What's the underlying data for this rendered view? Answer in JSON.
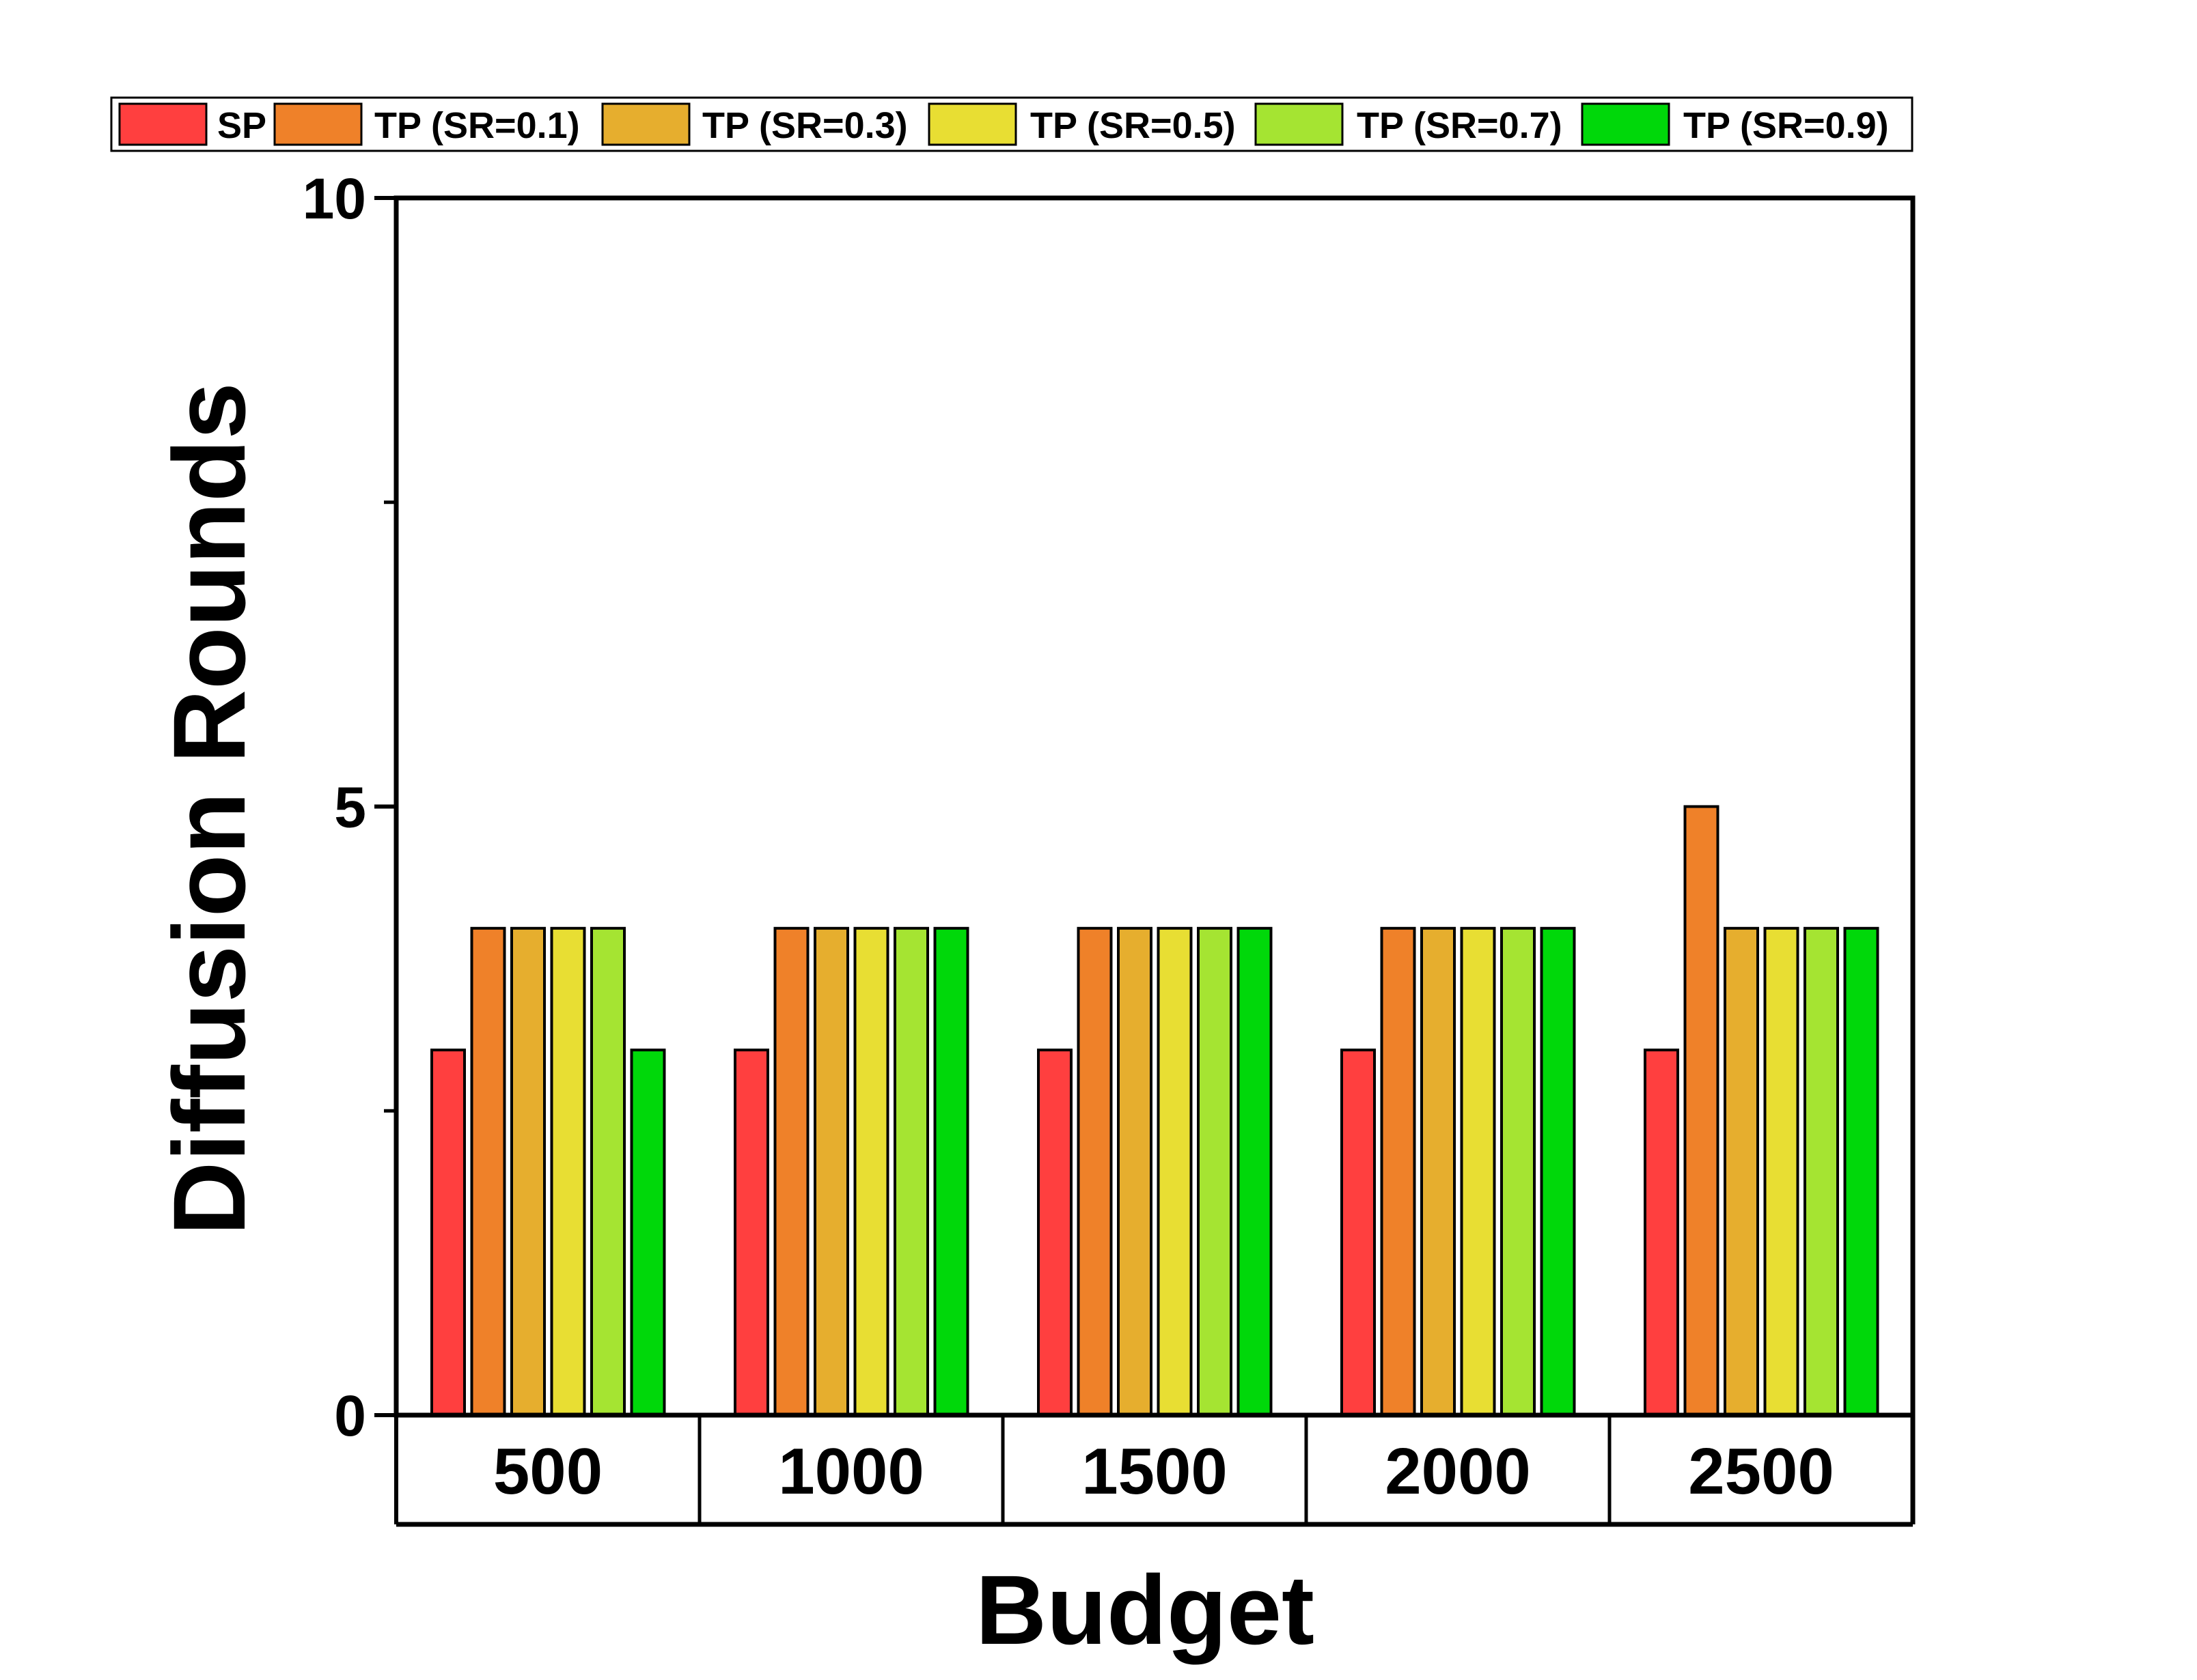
{
  "chart_data": {
    "type": "bar",
    "title": "",
    "xlabel": "Budget",
    "ylabel": "Diffusion Rounds",
    "categories": [
      "500",
      "1000",
      "1500",
      "2000",
      "2500"
    ],
    "ylim": [
      0,
      10
    ],
    "yticks": [
      "0",
      "5",
      "10"
    ],
    "legend_position": "top",
    "series": [
      {
        "name": "SP",
        "color": "#FF3F3F",
        "values": [
          3,
          3,
          3,
          3,
          3
        ]
      },
      {
        "name": "TP (SR=0.1)",
        "color": "#EF8129",
        "values": [
          4,
          4,
          4,
          4,
          5
        ]
      },
      {
        "name": "TP (SR=0.3)",
        "color": "#E6AE2E",
        "values": [
          4,
          4,
          4,
          4,
          4
        ]
      },
      {
        "name": "TP (SR=0.5)",
        "color": "#E8DE33",
        "values": [
          4,
          4,
          4,
          4,
          4
        ]
      },
      {
        "name": "TP (SR=0.7)",
        "color": "#A5E432",
        "values": [
          4,
          4,
          4,
          4,
          4
        ]
      },
      {
        "name": "TP (SR=0.9)",
        "color": "#00D80A",
        "values": [
          3,
          4,
          4,
          4,
          4
        ]
      }
    ]
  }
}
